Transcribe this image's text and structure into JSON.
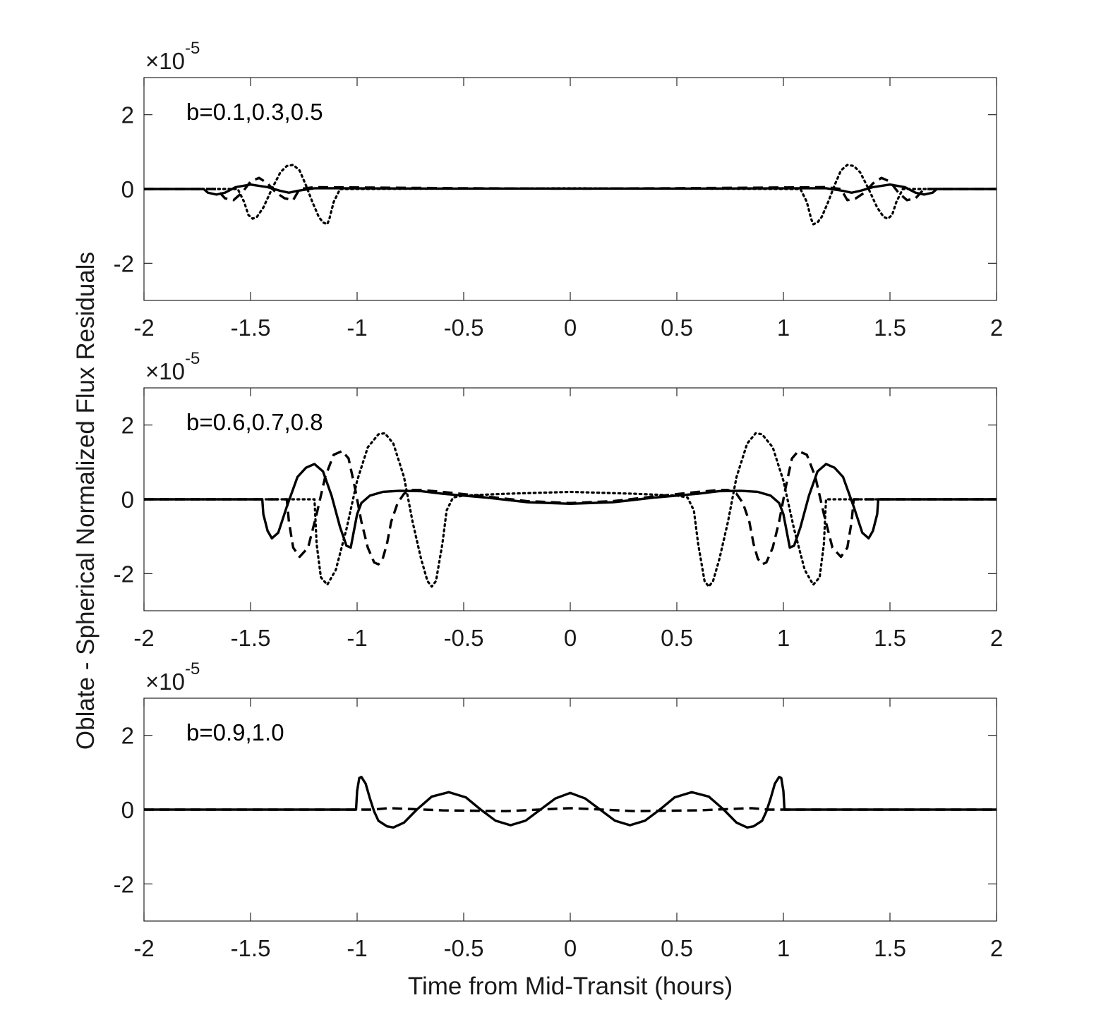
{
  "chart_data": [
    {
      "type": "line",
      "panel": "top",
      "annotation": "b=0.1,0.3,0.5",
      "xlim": [
        -2,
        2
      ],
      "ylim": [
        -3,
        3
      ],
      "y_multiplier": "×10",
      "y_exponent": "-5",
      "xticks": [
        "-2",
        "-1.5",
        "-1",
        "-0.5",
        "0",
        "0.5",
        "1",
        "1.5",
        "2"
      ],
      "yticks": [
        "-2",
        "0",
        "2"
      ],
      "series": [
        {
          "style": "solid",
          "x": [
            -2,
            -1.72,
            -1.7,
            -1.66,
            -1.62,
            -1.57,
            -1.5,
            -1.42,
            -1.36,
            -1.32,
            -1.28,
            -1.2,
            -1.1,
            -0.5,
            0,
            0.5,
            1.1,
            1.2,
            1.28,
            1.32,
            1.36,
            1.42,
            1.5,
            1.57,
            1.62,
            1.66,
            1.7,
            1.72,
            2
          ],
          "y": [
            0,
            0,
            -0.1,
            -0.15,
            -0.1,
            0.05,
            0.12,
            0.05,
            -0.05,
            -0.1,
            -0.05,
            0.02,
            0.02,
            0.01,
            0.01,
            0.01,
            0.02,
            0.02,
            -0.05,
            -0.1,
            -0.05,
            0.05,
            0.12,
            0.05,
            -0.1,
            -0.15,
            -0.1,
            0,
            0
          ]
        },
        {
          "style": "dashed",
          "x": [
            -2,
            -1.66,
            -1.62,
            -1.58,
            -1.54,
            -1.5,
            -1.46,
            -1.42,
            -1.38,
            -1.34,
            -1.3,
            -1.27,
            -1.2,
            -0.5,
            0,
            0.5,
            1.2,
            1.27,
            1.3,
            1.34,
            1.38,
            1.42,
            1.46,
            1.5,
            1.54,
            1.58,
            1.62,
            1.66,
            2
          ],
          "y": [
            0,
            0,
            -0.25,
            -0.3,
            -0.1,
            0.2,
            0.3,
            0.15,
            -0.1,
            -0.25,
            -0.3,
            0,
            0.05,
            0.02,
            0.01,
            0.02,
            0.05,
            0,
            -0.3,
            -0.25,
            -0.1,
            0.15,
            0.3,
            0.2,
            -0.1,
            -0.3,
            -0.25,
            0,
            0
          ]
        },
        {
          "style": "dotted",
          "x": [
            -2,
            -1.56,
            -1.53,
            -1.51,
            -1.49,
            -1.47,
            -1.44,
            -1.4,
            -1.36,
            -1.33,
            -1.3,
            -1.27,
            -1.24,
            -1.21,
            -1.18,
            -1.16,
            -1.14,
            -1.13,
            -1.11,
            -1.08,
            0,
            1.08,
            1.11,
            1.13,
            1.14,
            1.16,
            1.18,
            1.21,
            1.24,
            1.27,
            1.3,
            1.33,
            1.36,
            1.4,
            1.44,
            1.47,
            1.49,
            1.51,
            1.53,
            1.56,
            2
          ],
          "y": [
            0,
            0,
            -0.35,
            -0.7,
            -0.8,
            -0.75,
            -0.5,
            0,
            0.45,
            0.62,
            0.65,
            0.5,
            0.1,
            -0.35,
            -0.75,
            -0.9,
            -0.95,
            -0.8,
            -0.35,
            0,
            0.02,
            0,
            -0.35,
            -0.8,
            -0.95,
            -0.9,
            -0.75,
            -0.35,
            0.1,
            0.5,
            0.65,
            0.62,
            0.45,
            0,
            -0.5,
            -0.75,
            -0.8,
            -0.7,
            -0.35,
            0,
            0
          ]
        }
      ]
    },
    {
      "type": "line",
      "panel": "middle",
      "annotation": "b=0.6,0.7,0.8",
      "xlim": [
        -2,
        2
      ],
      "ylim": [
        -3,
        3
      ],
      "y_multiplier": "×10",
      "y_exponent": "-5",
      "xticks": [
        "-2",
        "-1.5",
        "-1",
        "-0.5",
        "0",
        "0.5",
        "1",
        "1.5",
        "2"
      ],
      "yticks": [
        "-2",
        "0",
        "2"
      ],
      "series": [
        {
          "style": "solid",
          "x": [
            -2,
            -1.445,
            -1.44,
            -1.42,
            -1.4,
            -1.37,
            -1.33,
            -1.28,
            -1.24,
            -1.2,
            -1.16,
            -1.12,
            -1.08,
            -1.05,
            -1.03,
            -1.01,
            -1.0,
            -0.98,
            -0.94,
            -0.88,
            -0.8,
            -0.7,
            -0.6,
            -0.4,
            -0.2,
            0,
            0.2,
            0.4,
            0.6,
            0.7,
            0.8,
            0.88,
            0.94,
            0.98,
            1.0,
            1.01,
            1.03,
            1.05,
            1.08,
            1.12,
            1.16,
            1.2,
            1.24,
            1.28,
            1.33,
            1.37,
            1.4,
            1.42,
            1.44,
            1.445,
            2
          ],
          "y": [
            0,
            0,
            -0.4,
            -0.85,
            -1.05,
            -0.9,
            -0.2,
            0.6,
            0.85,
            0.95,
            0.75,
            0.1,
            -0.75,
            -1.25,
            -1.3,
            -0.7,
            -0.4,
            -0.1,
            0.1,
            0.2,
            0.23,
            0.22,
            0.15,
            0.05,
            -0.08,
            -0.12,
            -0.08,
            0.05,
            0.15,
            0.22,
            0.23,
            0.2,
            0.1,
            -0.1,
            -0.4,
            -0.7,
            -1.3,
            -1.25,
            -0.75,
            0.1,
            0.75,
            0.95,
            0.85,
            0.6,
            -0.2,
            -0.9,
            -1.05,
            -0.85,
            -0.4,
            0,
            0
          ]
        },
        {
          "style": "dashed",
          "x": [
            -2,
            -1.33,
            -1.32,
            -1.3,
            -1.27,
            -1.23,
            -1.19,
            -1.15,
            -1.11,
            -1.07,
            -1.04,
            -1.01,
            -0.98,
            -0.95,
            -0.92,
            -0.9,
            -0.88,
            -0.86,
            -0.84,
            -0.81,
            -0.78,
            -0.74,
            -0.7,
            -0.6,
            -0.4,
            -0.2,
            0,
            0.2,
            0.4,
            0.6,
            0.7,
            0.74,
            0.78,
            0.81,
            0.84,
            0.86,
            0.88,
            0.9,
            0.92,
            0.95,
            0.98,
            1.01,
            1.04,
            1.07,
            1.11,
            1.15,
            1.19,
            1.23,
            1.27,
            1.3,
            1.32,
            1.33,
            2
          ],
          "y": [
            0,
            0,
            -0.6,
            -1.3,
            -1.55,
            -1.3,
            -0.4,
            0.6,
            1.2,
            1.3,
            1.1,
            0.3,
            -0.6,
            -1.3,
            -1.7,
            -1.75,
            -1.6,
            -1.2,
            -0.6,
            -0.1,
            0.15,
            0.25,
            0.25,
            0.2,
            0.08,
            -0.05,
            -0.1,
            -0.05,
            0.08,
            0.2,
            0.25,
            0.25,
            0.15,
            -0.1,
            -0.6,
            -1.2,
            -1.6,
            -1.75,
            -1.7,
            -1.3,
            -0.6,
            0.3,
            1.1,
            1.3,
            1.2,
            0.6,
            -0.4,
            -1.3,
            -1.55,
            -1.3,
            -0.6,
            0,
            0
          ]
        },
        {
          "style": "dotted",
          "x": [
            -2,
            -1.2,
            -1.19,
            -1.17,
            -1.14,
            -1.1,
            -1.05,
            -1.0,
            -0.95,
            -0.9,
            -0.87,
            -0.83,
            -0.78,
            -0.74,
            -0.7,
            -0.67,
            -0.65,
            -0.63,
            -0.6,
            -0.58,
            -0.55,
            -0.5,
            -0.3,
            0,
            0.3,
            0.5,
            0.55,
            0.58,
            0.6,
            0.63,
            0.65,
            0.67,
            0.7,
            0.74,
            0.78,
            0.83,
            0.87,
            0.9,
            0.95,
            1.0,
            1.05,
            1.1,
            1.14,
            1.17,
            1.19,
            1.2,
            2
          ],
          "y": [
            0,
            0,
            -1.2,
            -2.1,
            -2.3,
            -1.9,
            -0.8,
            0.5,
            1.4,
            1.75,
            1.78,
            1.5,
            0.6,
            -0.6,
            -1.6,
            -2.2,
            -2.35,
            -2.2,
            -1.2,
            -0.3,
            0.05,
            0.1,
            0.15,
            0.2,
            0.15,
            0.1,
            0.05,
            -0.3,
            -1.2,
            -2.2,
            -2.35,
            -2.2,
            -1.6,
            -0.6,
            0.6,
            1.5,
            1.78,
            1.75,
            1.4,
            0.5,
            -0.8,
            -1.9,
            -2.3,
            -2.1,
            -1.2,
            0,
            0
          ]
        }
      ]
    },
    {
      "type": "line",
      "panel": "bottom",
      "annotation": "b=0.9,1.0",
      "xlim": [
        -2,
        2
      ],
      "ylim": [
        -3,
        3
      ],
      "y_multiplier": "×10",
      "y_exponent": "-5",
      "xticks": [
        "-2",
        "-1.5",
        "-1",
        "-0.5",
        "0",
        "0.5",
        "1",
        "1.5",
        "2"
      ],
      "yticks": [
        "-2",
        "0",
        "2"
      ],
      "xlabel": "Time from Mid-Transit (hours)",
      "series": [
        {
          "style": "solid",
          "x": [
            -2,
            -1.005,
            -1.0,
            -0.99,
            -0.98,
            -0.96,
            -0.94,
            -0.92,
            -0.9,
            -0.86,
            -0.83,
            -0.78,
            -0.72,
            -0.65,
            -0.57,
            -0.49,
            -0.42,
            -0.35,
            -0.28,
            -0.21,
            -0.14,
            -0.07,
            0,
            0.07,
            0.14,
            0.21,
            0.28,
            0.35,
            0.42,
            0.49,
            0.57,
            0.65,
            0.72,
            0.78,
            0.83,
            0.86,
            0.9,
            0.92,
            0.94,
            0.96,
            0.98,
            0.99,
            1.0,
            1.005,
            2
          ],
          "y": [
            0,
            0,
            0.5,
            0.85,
            0.88,
            0.7,
            0.3,
            -0.05,
            -0.3,
            -0.45,
            -0.48,
            -0.35,
            0.0,
            0.35,
            0.47,
            0.33,
            0.0,
            -0.3,
            -0.42,
            -0.3,
            0.0,
            0.3,
            0.45,
            0.3,
            0.0,
            -0.3,
            -0.42,
            -0.3,
            0.0,
            0.33,
            0.47,
            0.35,
            0.0,
            -0.35,
            -0.48,
            -0.45,
            -0.3,
            -0.05,
            0.3,
            0.7,
            0.88,
            0.85,
            0.5,
            0,
            0
          ]
        },
        {
          "style": "dashed",
          "x": [
            -2,
            -0.93,
            -0.85,
            -0.6,
            -0.3,
            0,
            0.3,
            0.6,
            0.85,
            0.93,
            2
          ],
          "y": [
            0,
            0,
            0.04,
            -0.02,
            -0.04,
            0.04,
            -0.04,
            -0.02,
            0.04,
            0,
            0
          ]
        }
      ]
    }
  ],
  "ylabel": "Oblate - Spherical Normalized Flux Residuals"
}
